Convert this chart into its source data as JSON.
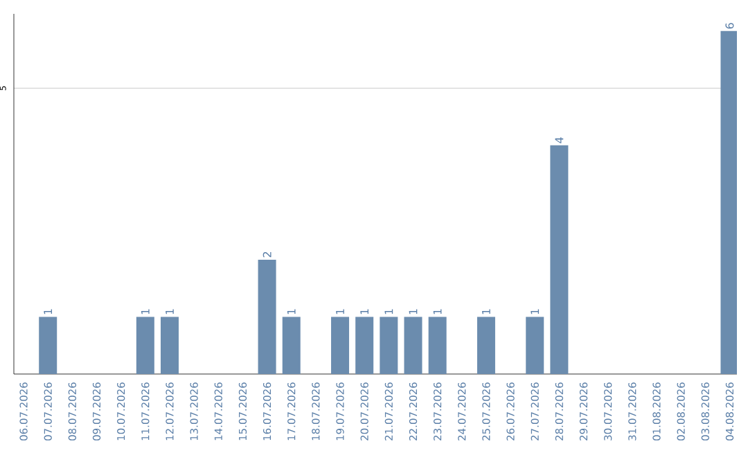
{
  "chart_data": {
    "type": "bar",
    "categories": [
      "06.07.2026",
      "07.07.2026",
      "08.07.2026",
      "09.07.2026",
      "10.07.2026",
      "11.07.2026",
      "12.07.2026",
      "13.07.2026",
      "14.07.2026",
      "15.07.2026",
      "16.07.2026",
      "17.07.2026",
      "18.07.2026",
      "19.07.2026",
      "20.07.2026",
      "21.07.2026",
      "22.07.2026",
      "23.07.2026",
      "24.07.2026",
      "25.07.2026",
      "26.07.2026",
      "27.07.2026",
      "28.07.2026",
      "29.07.2026",
      "30.07.2026",
      "31.07.2026",
      "01.08.2026",
      "02.08.2026",
      "03.08.2026",
      "04.08.2026"
    ],
    "values": [
      0,
      1,
      0,
      0,
      0,
      1,
      1,
      0,
      0,
      0,
      2,
      1,
      0,
      1,
      1,
      1,
      1,
      1,
      0,
      1,
      0,
      1,
      4,
      0,
      0,
      0,
      0,
      0,
      0,
      6
    ],
    "value_labels": [
      null,
      "1",
      null,
      null,
      null,
      "1",
      "1",
      null,
      null,
      null,
      "2",
      "1",
      null,
      "1",
      "1",
      "1",
      "1",
      "1",
      null,
      "1",
      null,
      "1",
      "4",
      null,
      null,
      null,
      null,
      null,
      null,
      "6"
    ],
    "color": "#6b8cae",
    "ylim": [
      0,
      6.3
    ],
    "yticks": [
      5
    ],
    "grid": "y"
  }
}
